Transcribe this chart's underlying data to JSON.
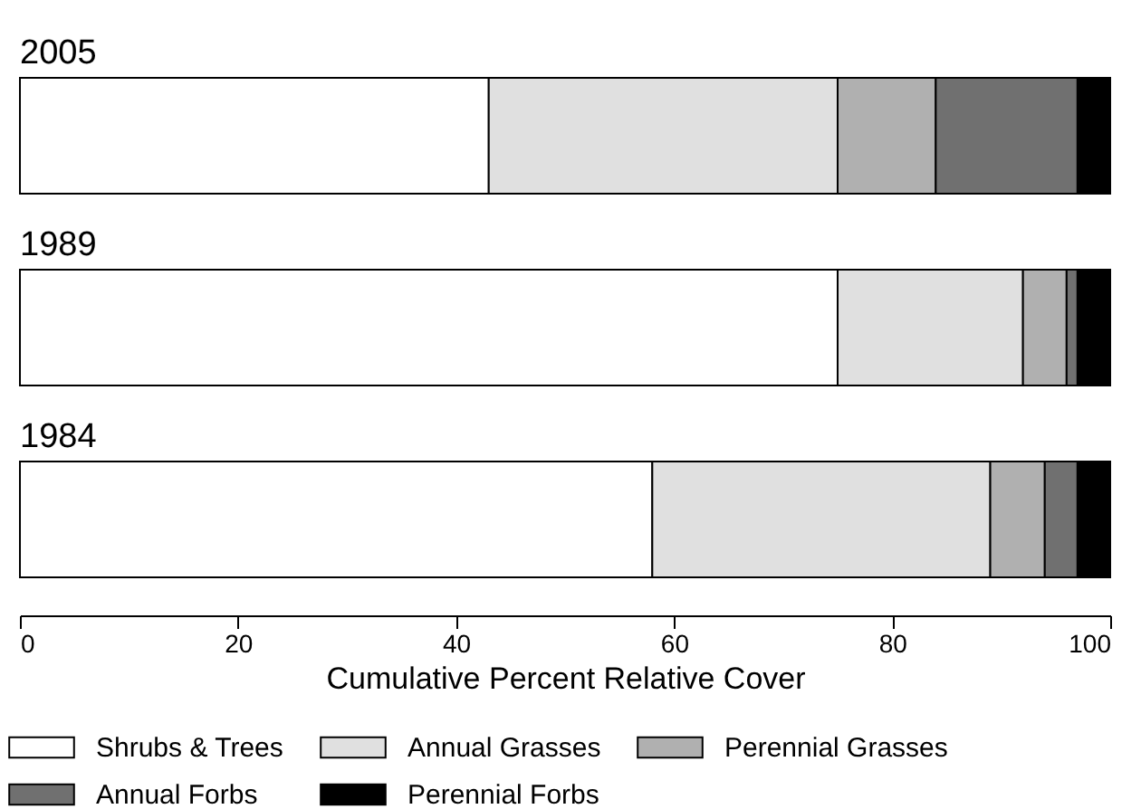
{
  "chart_data": {
    "type": "bar",
    "orientation": "horizontal",
    "stacked": true,
    "categories": [
      "2005",
      "1989",
      "1984"
    ],
    "series": [
      {
        "name": "Shrubs & Trees",
        "color": "#ffffff",
        "values": [
          43,
          75,
          58
        ]
      },
      {
        "name": "Annual Grasses",
        "color": "#e0e0e0",
        "values": [
          32,
          17,
          31
        ]
      },
      {
        "name": "Perennial Grasses",
        "color": "#b0b0b0",
        "values": [
          9,
          4,
          5
        ]
      },
      {
        "name": "Annual Forbs",
        "color": "#707070",
        "values": [
          13,
          1,
          3
        ]
      },
      {
        "name": "Perennial Forbs",
        "color": "#000000",
        "values": [
          3,
          3,
          3
        ]
      }
    ],
    "xlabel": "Cumulative Percent Relative Cover",
    "xlim": [
      0,
      100
    ],
    "xticks": [
      0,
      20,
      40,
      60,
      80,
      100
    ],
    "grid": false,
    "legend": "bottom"
  }
}
